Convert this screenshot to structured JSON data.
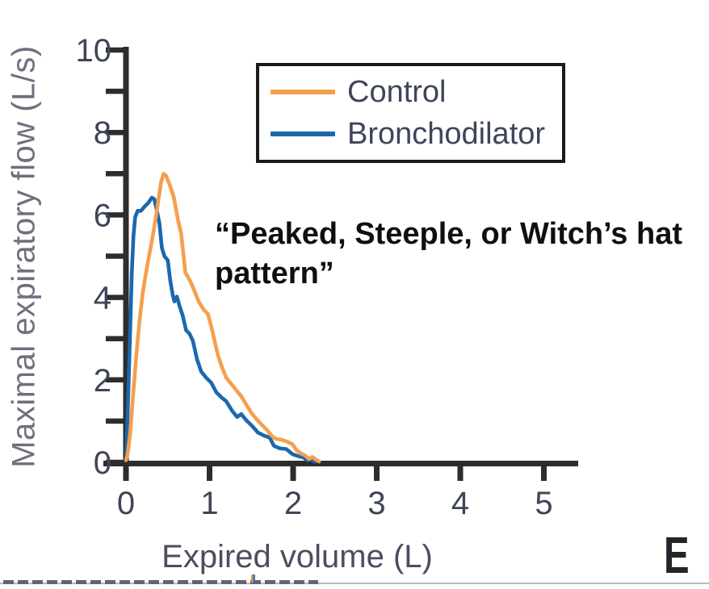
{
  "panel_label": "E",
  "annotation": {
    "line1": "“Peaked, Steeple, or Witch’s hat",
    "line2": "pattern”"
  },
  "colors": {
    "control_orange": "#F3A04E",
    "bronchodilator_blue": "#1B68AD",
    "axis": "#2D2D2D",
    "tick_text": "#3F4458",
    "axis_title_gray": "#6E707F",
    "legend_border": "#1a1a1a",
    "annotation_text": "#0f0f0f"
  },
  "chart_data": {
    "type": "line",
    "title": "",
    "xlabel": "Expired volume (L)",
    "ylabel": "Maximal expiratory flow (L/s)",
    "xlim": [
      0,
      5.4
    ],
    "ylim": [
      0,
      10
    ],
    "grid": false,
    "x_ticks": [
      0,
      1,
      2,
      3,
      4,
      5
    ],
    "x_tick_labels": [
      "0",
      "1",
      "2",
      "3",
      "4",
      "5"
    ],
    "y_major_ticks": [
      0,
      2,
      4,
      6,
      8,
      10
    ],
    "y_tick_labels": [
      "0",
      "2",
      "4",
      "6",
      "8",
      "10"
    ],
    "y_minor_ticks": [
      1,
      3,
      5,
      7,
      9
    ],
    "legend_position": "upper center, framed box",
    "series": [
      {
        "name": "Control",
        "color": "#F3A04E",
        "peak_flow": 7.0,
        "peak_volume": 0.45,
        "points": [
          [
            0.0,
            0.05
          ],
          [
            0.02,
            0.2
          ],
          [
            0.05,
            0.7
          ],
          [
            0.08,
            1.5
          ],
          [
            0.12,
            2.5
          ],
          [
            0.16,
            3.4
          ],
          [
            0.2,
            4.1
          ],
          [
            0.24,
            4.6
          ],
          [
            0.28,
            5.05
          ],
          [
            0.33,
            5.6
          ],
          [
            0.38,
            6.25
          ],
          [
            0.42,
            6.8
          ],
          [
            0.45,
            7.0
          ],
          [
            0.48,
            6.95
          ],
          [
            0.52,
            6.75
          ],
          [
            0.57,
            6.45
          ],
          [
            0.62,
            5.9
          ],
          [
            0.66,
            5.55
          ],
          [
            0.69,
            5.0
          ],
          [
            0.71,
            4.6
          ],
          [
            0.74,
            4.5
          ],
          [
            0.78,
            4.35
          ],
          [
            0.82,
            4.15
          ],
          [
            0.87,
            3.9
          ],
          [
            0.93,
            3.7
          ],
          [
            0.98,
            3.6
          ],
          [
            1.02,
            3.3
          ],
          [
            1.06,
            2.95
          ],
          [
            1.1,
            2.6
          ],
          [
            1.15,
            2.3
          ],
          [
            1.2,
            2.05
          ],
          [
            1.26,
            1.9
          ],
          [
            1.32,
            1.75
          ],
          [
            1.38,
            1.6
          ],
          [
            1.44,
            1.4
          ],
          [
            1.5,
            1.2
          ],
          [
            1.56,
            1.05
          ],
          [
            1.62,
            0.92
          ],
          [
            1.68,
            0.8
          ],
          [
            1.74,
            0.65
          ],
          [
            1.79,
            0.57
          ],
          [
            1.86,
            0.55
          ],
          [
            1.93,
            0.5
          ],
          [
            1.99,
            0.44
          ],
          [
            2.04,
            0.3
          ],
          [
            2.09,
            0.22
          ],
          [
            2.14,
            0.17
          ],
          [
            2.19,
            0.08
          ],
          [
            2.23,
            0.13
          ],
          [
            2.27,
            0.07
          ],
          [
            2.31,
            0.02
          ]
        ]
      },
      {
        "name": "Bronchodilator",
        "color": "#1B68AD",
        "peak_flow": 6.4,
        "peak_volume": 0.32,
        "points": [
          [
            0.0,
            0.05
          ],
          [
            0.01,
            0.5
          ],
          [
            0.03,
            1.8
          ],
          [
            0.05,
            3.2
          ],
          [
            0.07,
            4.6
          ],
          [
            0.09,
            5.5
          ],
          [
            0.11,
            5.95
          ],
          [
            0.14,
            6.1
          ],
          [
            0.18,
            6.1
          ],
          [
            0.22,
            6.2
          ],
          [
            0.27,
            6.3
          ],
          [
            0.31,
            6.42
          ],
          [
            0.34,
            6.38
          ],
          [
            0.37,
            6.1
          ],
          [
            0.4,
            5.8
          ],
          [
            0.43,
            5.2
          ],
          [
            0.46,
            5.0
          ],
          [
            0.5,
            4.9
          ],
          [
            0.53,
            4.4
          ],
          [
            0.56,
            4.05
          ],
          [
            0.58,
            3.9
          ],
          [
            0.61,
            4.02
          ],
          [
            0.64,
            3.8
          ],
          [
            0.68,
            3.55
          ],
          [
            0.72,
            3.2
          ],
          [
            0.76,
            3.12
          ],
          [
            0.8,
            2.95
          ],
          [
            0.85,
            2.5
          ],
          [
            0.9,
            2.2
          ],
          [
            0.96,
            2.05
          ],
          [
            1.02,
            1.93
          ],
          [
            1.08,
            1.7
          ],
          [
            1.14,
            1.58
          ],
          [
            1.2,
            1.48
          ],
          [
            1.27,
            1.25
          ],
          [
            1.33,
            1.1
          ],
          [
            1.38,
            1.17
          ],
          [
            1.44,
            1.02
          ],
          [
            1.51,
            0.88
          ],
          [
            1.58,
            0.72
          ],
          [
            1.65,
            0.65
          ],
          [
            1.72,
            0.6
          ],
          [
            1.77,
            0.4
          ],
          [
            1.84,
            0.34
          ],
          [
            1.92,
            0.32
          ],
          [
            1.99,
            0.2
          ],
          [
            2.06,
            0.15
          ],
          [
            2.12,
            0.12
          ],
          [
            2.17,
            0.05
          ],
          [
            2.21,
            0.08
          ],
          [
            2.26,
            0.01
          ]
        ]
      }
    ]
  }
}
